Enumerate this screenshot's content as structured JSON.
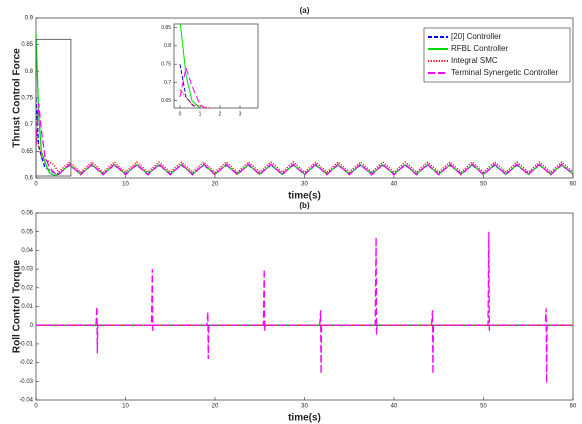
{
  "chart_data": [
    {
      "type": "line",
      "title": "(a)",
      "xlabel": "time(s)",
      "ylabel": "Thrust Control Force",
      "x": [
        0,
        0.3,
        0.6,
        1,
        1.5,
        2,
        2.5,
        3.75,
        5,
        6.25,
        7.5,
        8.75,
        10,
        11.25,
        12.5,
        13.75,
        15,
        16.25,
        17.5,
        18.75,
        20,
        21.25,
        22.5,
        23.75,
        25,
        26.25,
        27.5,
        28.75,
        30,
        31.25,
        32.5,
        33.75,
        35,
        36.25,
        37.5,
        38.75,
        40,
        41.25,
        42.5,
        43.75,
        45,
        46.25,
        47.5,
        48.75,
        50,
        51.25,
        52.5,
        53.75,
        55,
        56.25,
        57.5,
        58.75,
        60
      ],
      "series": [
        {
          "name": "[20] Controller",
          "color": "#0000ff",
          "style": "dashed",
          "values": [
            0.75,
            0.66,
            0.64,
            0.62,
            0.615,
            0.61,
            0.608,
            0.624,
            0.608,
            0.624,
            0.608,
            0.624,
            0.608,
            0.624,
            0.608,
            0.624,
            0.608,
            0.624,
            0.608,
            0.624,
            0.608,
            0.624,
            0.608,
            0.624,
            0.608,
            0.624,
            0.608,
            0.624,
            0.608,
            0.624,
            0.608,
            0.624,
            0.608,
            0.624,
            0.608,
            0.624,
            0.608,
            0.624,
            0.608,
            0.624,
            0.608,
            0.624,
            0.608,
            0.624,
            0.608,
            0.624,
            0.608,
            0.624,
            0.608,
            0.624,
            0.608,
            0.624,
            0.608
          ]
        },
        {
          "name": "RFBL Controller",
          "color": "#00dd00",
          "style": "solid",
          "values": [
            0.87,
            0.72,
            0.65,
            0.63,
            0.61,
            0.605,
            0.607,
            0.625,
            0.607,
            0.625,
            0.607,
            0.625,
            0.607,
            0.625,
            0.607,
            0.625,
            0.607,
            0.625,
            0.607,
            0.625,
            0.607,
            0.625,
            0.607,
            0.625,
            0.607,
            0.625,
            0.607,
            0.625,
            0.607,
            0.625,
            0.607,
            0.625,
            0.607,
            0.625,
            0.607,
            0.625,
            0.607,
            0.625,
            0.607,
            0.625,
            0.607,
            0.625,
            0.607,
            0.625,
            0.607,
            0.625,
            0.607,
            0.625,
            0.607,
            0.625,
            0.607,
            0.625,
            0.607
          ]
        },
        {
          "name": "Integral SMC",
          "color": "#ff0000",
          "style": "dotted",
          "values": [
            0.68,
            0.66,
            0.64,
            0.635,
            0.63,
            0.625,
            0.611,
            0.63,
            0.611,
            0.63,
            0.611,
            0.63,
            0.611,
            0.63,
            0.611,
            0.63,
            0.611,
            0.63,
            0.611,
            0.63,
            0.611,
            0.63,
            0.611,
            0.63,
            0.611,
            0.63,
            0.611,
            0.63,
            0.611,
            0.63,
            0.611,
            0.63,
            0.611,
            0.63,
            0.611,
            0.63,
            0.611,
            0.63,
            0.611,
            0.63,
            0.611,
            0.63,
            0.611,
            0.63,
            0.611,
            0.63,
            0.611,
            0.63,
            0.611,
            0.63,
            0.611,
            0.63,
            0.611
          ]
        },
        {
          "name": "Terminal Synergetic Controller",
          "color": "#ff00ff",
          "style": "dashdash",
          "values": [
            0.66,
            0.74,
            0.69,
            0.64,
            0.62,
            0.61,
            0.606,
            0.626,
            0.606,
            0.626,
            0.606,
            0.626,
            0.606,
            0.626,
            0.606,
            0.626,
            0.606,
            0.626,
            0.606,
            0.626,
            0.606,
            0.626,
            0.606,
            0.626,
            0.606,
            0.626,
            0.606,
            0.626,
            0.606,
            0.626,
            0.606,
            0.626,
            0.606,
            0.626,
            0.606,
            0.626,
            0.606,
            0.626,
            0.606,
            0.626,
            0.606,
            0.626,
            0.606,
            0.626,
            0.606,
            0.626,
            0.606,
            0.626,
            0.606,
            0.626,
            0.606,
            0.626,
            0.606
          ]
        }
      ],
      "xlim": [
        0,
        60
      ],
      "ylim": [
        0.6,
        0.9
      ],
      "xticks": [
        0,
        10,
        20,
        30,
        40,
        50,
        60
      ],
      "yticks": [
        0.6,
        0.65,
        0.7,
        0.75,
        0.8,
        0.85,
        0.9
      ],
      "legend": "upper right",
      "inset": {
        "xlim": [
          -0.3,
          3.9
        ],
        "ylim": [
          0.63,
          0.86
        ],
        "xticks": [
          0,
          1,
          2,
          3
        ],
        "yticks": [
          0.65,
          0.7,
          0.75,
          0.8,
          0.85
        ]
      }
    },
    {
      "type": "line",
      "title": "(b)",
      "xlabel": "time(s)",
      "ylabel": "Roll Control Torque",
      "x": [
        0,
        6.7,
        6.8,
        6.85,
        6.9,
        12.9,
        13,
        13.05,
        13.1,
        19.1,
        19.2,
        19.25,
        19.3,
        25.4,
        25.5,
        25.55,
        25.6,
        31.7,
        31.8,
        31.85,
        31.9,
        37.9,
        38,
        38.05,
        38.1,
        44.2,
        44.3,
        44.35,
        44.4,
        50.5,
        50.6,
        50.65,
        50.7,
        56.9,
        57,
        57.05,
        57.1,
        60
      ],
      "series": [
        {
          "name": "[20] Controller",
          "color": "#0000ff",
          "style": "dashed",
          "values": [
            0,
            0,
            0,
            0,
            0,
            0,
            0,
            0,
            0,
            0,
            0,
            0,
            0,
            0,
            0,
            0,
            0,
            0,
            0,
            0,
            0,
            0,
            0,
            0,
            0,
            0,
            0,
            0,
            0,
            0,
            0,
            0,
            0,
            0,
            0,
            0,
            0,
            0
          ]
        },
        {
          "name": "RFBL Controller",
          "color": "#00dd00",
          "style": "solid",
          "values": [
            0,
            0,
            0,
            0,
            0,
            0,
            0,
            0,
            0,
            0,
            0,
            0,
            0,
            0,
            0,
            0,
            0,
            0,
            0,
            0,
            0,
            0,
            0,
            0,
            0,
            0,
            0,
            0,
            0,
            0,
            0,
            0,
            0,
            0,
            0,
            0,
            0,
            0
          ]
        },
        {
          "name": "Integral SMC",
          "color": "#ff0000",
          "style": "dotted",
          "values": [
            0,
            0,
            0,
            0,
            0,
            0,
            0,
            0,
            0,
            0,
            0,
            0,
            0,
            0,
            0,
            0,
            0,
            0,
            0,
            0,
            0,
            0,
            0,
            0,
            0,
            0,
            0,
            0,
            0,
            0,
            0,
            0,
            0,
            0,
            0,
            0,
            0,
            0
          ]
        },
        {
          "name": "Terminal Synergetic Controller",
          "color": "#ff00ff",
          "style": "dashdash",
          "values": [
            0,
            0,
            0.01,
            -0.015,
            0,
            0,
            0.03,
            -0.003,
            0,
            0,
            0.007,
            -0.018,
            0,
            0,
            0.03,
            -0.003,
            0,
            0,
            0.008,
            -0.026,
            0,
            0,
            0.047,
            -0.005,
            0,
            0,
            0.008,
            -0.026,
            0,
            0,
            0.05,
            -0.003,
            0,
            0,
            0.009,
            -0.031,
            0,
            0
          ]
        }
      ],
      "xlim": [
        0,
        60
      ],
      "ylim": [
        -0.04,
        0.06
      ],
      "xticks": [
        0,
        10,
        20,
        30,
        40,
        50,
        60
      ],
      "yticks": [
        -0.04,
        -0.03,
        -0.02,
        -0.01,
        0,
        0.01,
        0.02,
        0.03,
        0.04,
        0.05,
        0.06
      ]
    }
  ]
}
